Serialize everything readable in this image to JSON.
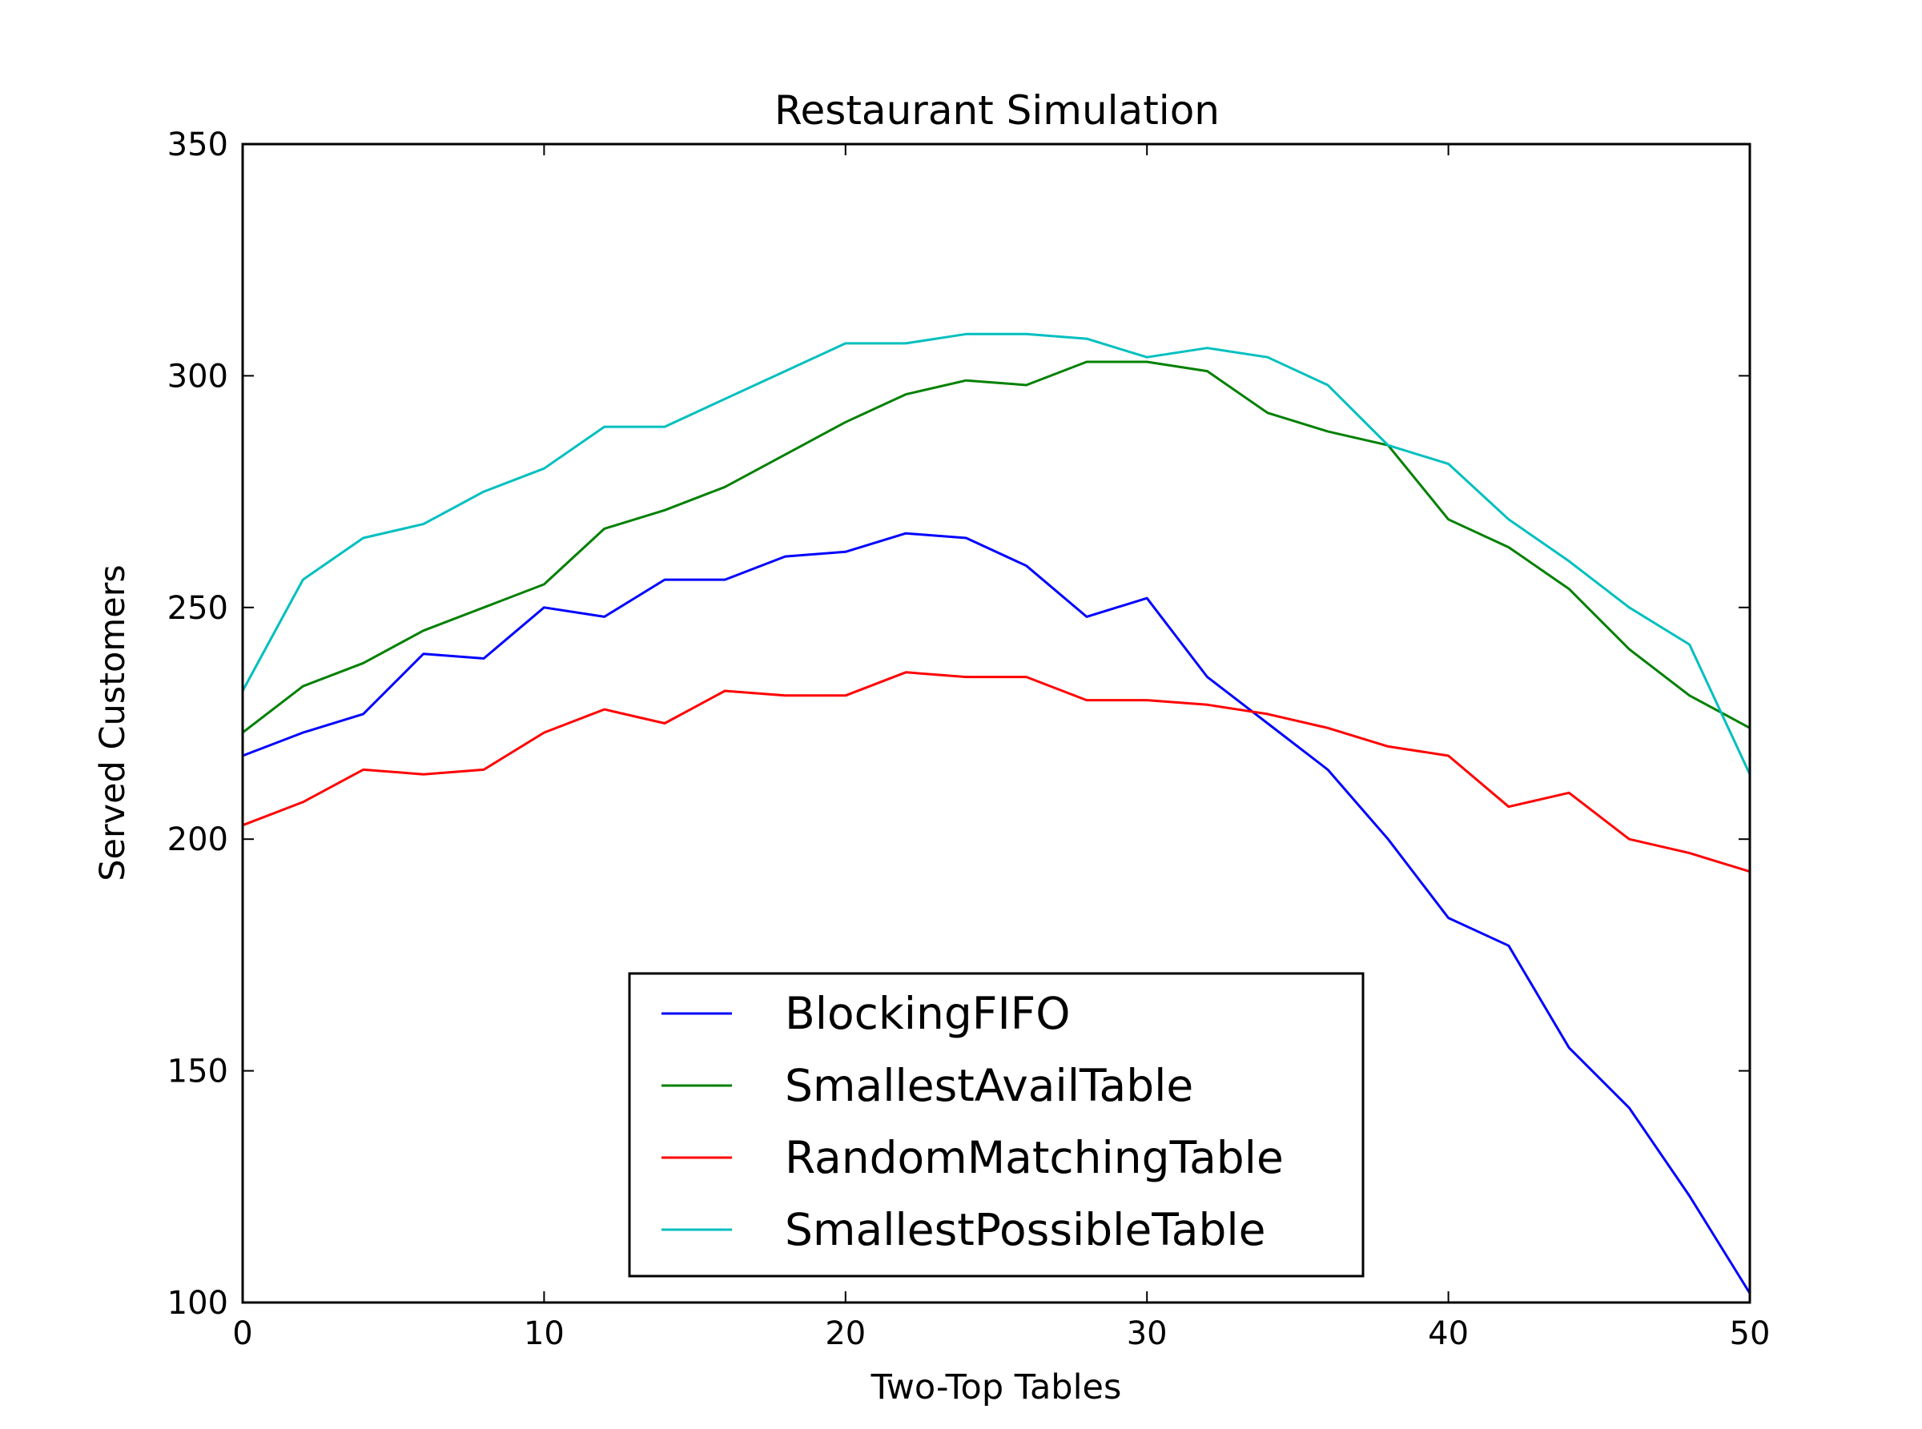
{
  "chart_data": {
    "type": "line",
    "title": "Restaurant Simulation",
    "xlabel": "Two-Top Tables",
    "ylabel": "Served Customers",
    "xlim": [
      0,
      50
    ],
    "ylim": [
      100,
      350
    ],
    "xticks": [
      "0",
      "10",
      "20",
      "30",
      "40",
      "50"
    ],
    "yticks": [
      "100",
      "150",
      "200",
      "250",
      "300",
      "350"
    ],
    "grid": false,
    "legend_position": "lower-center",
    "x": [
      0,
      2,
      4,
      6,
      8,
      10,
      12,
      14,
      16,
      18,
      20,
      22,
      24,
      26,
      28,
      30,
      32,
      34,
      36,
      38,
      40,
      42,
      44,
      46,
      48,
      50
    ],
    "series": [
      {
        "name": "BlockingFIFO",
        "color": "#0000ff",
        "values": [
          218,
          223,
          227,
          240,
          239,
          250,
          248,
          256,
          256,
          261,
          262,
          266,
          265,
          259,
          248,
          252,
          235,
          225,
          215,
          200,
          183,
          177,
          155,
          142,
          123,
          102
        ]
      },
      {
        "name": "SmallestAvailTable",
        "color": "#008000",
        "values": [
          223,
          233,
          238,
          245,
          250,
          255,
          267,
          271,
          276,
          283,
          290,
          296,
          299,
          298,
          303,
          303,
          301,
          292,
          288,
          285,
          269,
          263,
          254,
          241,
          231,
          224
        ]
      },
      {
        "name": "RandomMatchingTable",
        "color": "#ff0000",
        "values": [
          203,
          208,
          215,
          214,
          215,
          223,
          228,
          225,
          232,
          231,
          231,
          236,
          235,
          235,
          230,
          230,
          229,
          227,
          224,
          220,
          218,
          207,
          210,
          200,
          197,
          193
        ]
      },
      {
        "name": "SmallestPossibleTable",
        "color": "#00bfbf",
        "values": [
          232,
          256,
          265,
          268,
          275,
          280,
          289,
          289,
          295,
          301,
          307,
          307,
          309,
          309,
          308,
          304,
          306,
          304,
          298,
          285,
          281,
          269,
          260,
          250,
          242,
          214
        ]
      }
    ]
  }
}
